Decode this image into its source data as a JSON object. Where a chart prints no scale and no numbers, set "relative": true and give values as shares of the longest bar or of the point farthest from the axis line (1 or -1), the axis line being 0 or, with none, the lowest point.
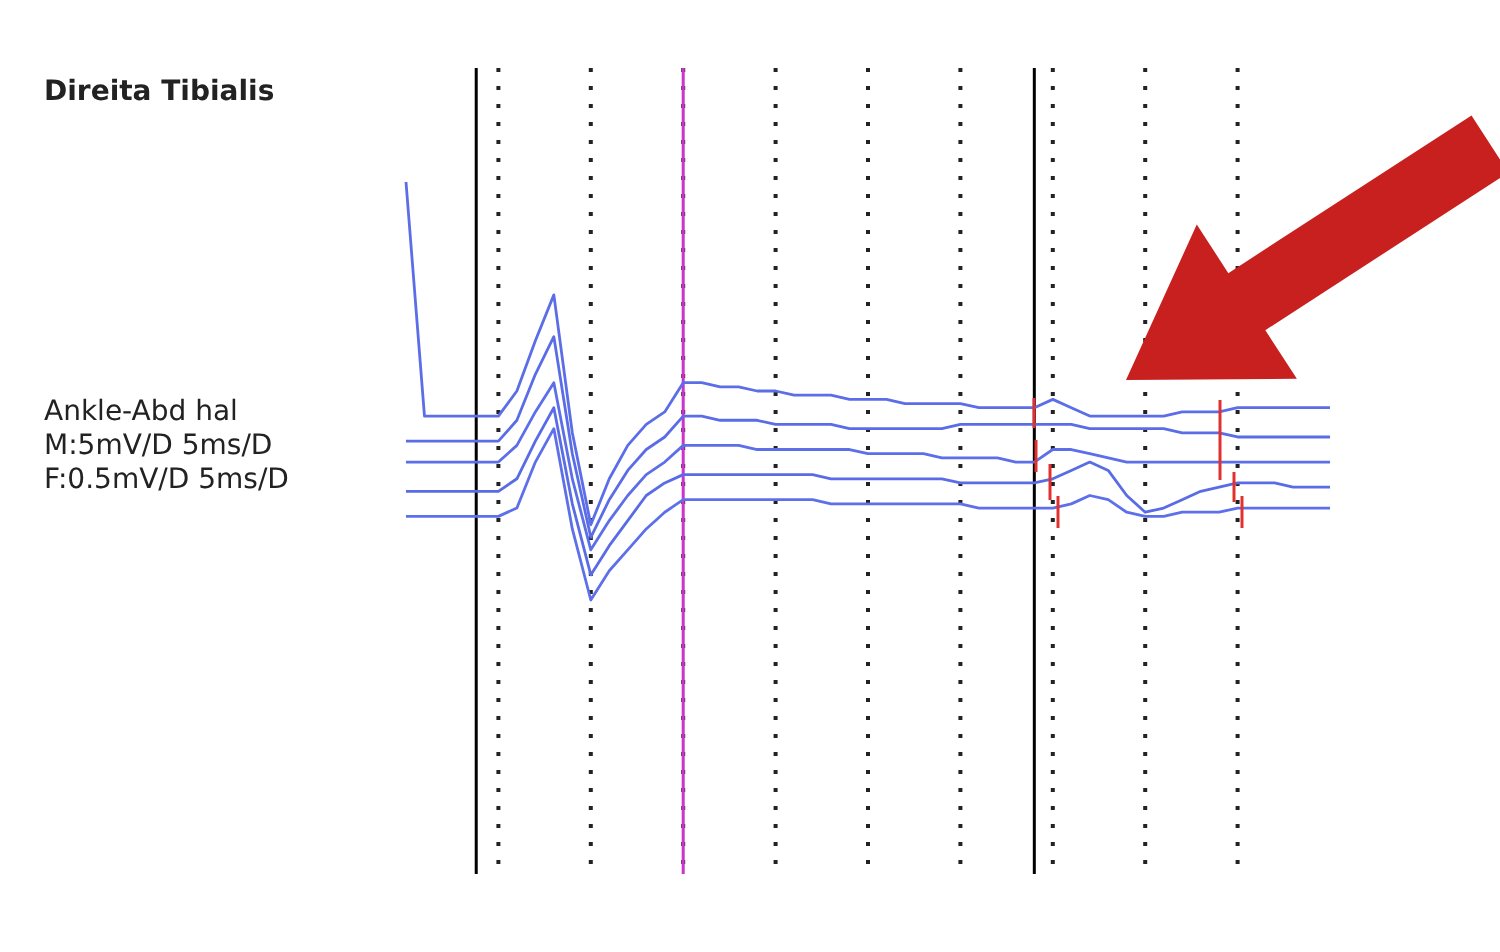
{
  "chart_data": {
    "type": "line",
    "title": "Direita Tibialis",
    "relative": true,
    "grid": "x",
    "annotations": [
      "Ankle-Abd hal",
      "M:5mV/D 5ms/D",
      "F:0.5mV/D 5ms/D"
    ],
    "categories": [
      null,
      null,
      null,
      null,
      null,
      null,
      null,
      null,
      null,
      null,
      null,
      null,
      null,
      null,
      null,
      null,
      null,
      null,
      null,
      null,
      null,
      null,
      null,
      null,
      null,
      null,
      null,
      null,
      null,
      null,
      null,
      null,
      null,
      null,
      null,
      null,
      null,
      null,
      null,
      null,
      null,
      null,
      null,
      null,
      null,
      null,
      null,
      null,
      null,
      null,
      null
    ],
    "series": [
      {
        "color": "#5b6ee8",
        "values": [
          1.0,
          0.44,
          0.44,
          0.44,
          0.44,
          0.44,
          0.5,
          0.62,
          0.73,
          0.4,
          0.18,
          0.29,
          0.37,
          0.42,
          0.45,
          0.52,
          0.52,
          0.51,
          0.51,
          0.5,
          0.5,
          0.49,
          0.49,
          0.49,
          0.48,
          0.48,
          0.48,
          0.47,
          0.47,
          0.47,
          0.47,
          0.46,
          0.46,
          0.46,
          0.46,
          0.48,
          0.46,
          0.44,
          0.44,
          0.44,
          0.44,
          0.44,
          0.45,
          0.45,
          0.45,
          0.46,
          0.46,
          0.46,
          0.46,
          0.46,
          0.46
        ]
      },
      {
        "color": "#5a6de7",
        "values": [
          0.38,
          0.38,
          0.38,
          0.38,
          0.38,
          0.38,
          0.43,
          0.54,
          0.63,
          0.35,
          0.15,
          0.24,
          0.31,
          0.36,
          0.39,
          0.44,
          0.44,
          0.43,
          0.43,
          0.43,
          0.42,
          0.42,
          0.42,
          0.42,
          0.41,
          0.41,
          0.41,
          0.41,
          0.41,
          0.41,
          0.42,
          0.42,
          0.42,
          0.42,
          0.42,
          0.42,
          0.42,
          0.41,
          0.41,
          0.41,
          0.41,
          0.41,
          0.4,
          0.4,
          0.4,
          0.39,
          0.39,
          0.39,
          0.39,
          0.39,
          0.39
        ]
      },
      {
        "color": "#5c6fe9",
        "values": [
          0.33,
          0.33,
          0.33,
          0.33,
          0.33,
          0.33,
          0.37,
          0.45,
          0.52,
          0.29,
          0.12,
          0.19,
          0.25,
          0.3,
          0.33,
          0.37,
          0.37,
          0.37,
          0.37,
          0.36,
          0.36,
          0.36,
          0.36,
          0.36,
          0.36,
          0.35,
          0.35,
          0.35,
          0.35,
          0.34,
          0.34,
          0.34,
          0.34,
          0.33,
          0.33,
          0.36,
          0.36,
          0.35,
          0.34,
          0.33,
          0.33,
          0.33,
          0.33,
          0.33,
          0.33,
          0.33,
          0.33,
          0.33,
          0.33,
          0.33,
          0.33
        ]
      },
      {
        "color": "#596ce6",
        "values": [
          0.26,
          0.26,
          0.26,
          0.26,
          0.26,
          0.26,
          0.29,
          0.38,
          0.46,
          0.23,
          0.06,
          0.13,
          0.19,
          0.25,
          0.28,
          0.3,
          0.3,
          0.3,
          0.3,
          0.3,
          0.3,
          0.3,
          0.3,
          0.29,
          0.29,
          0.29,
          0.29,
          0.29,
          0.29,
          0.29,
          0.28,
          0.28,
          0.28,
          0.28,
          0.28,
          0.29,
          0.31,
          0.33,
          0.31,
          0.25,
          0.21,
          0.22,
          0.24,
          0.26,
          0.27,
          0.28,
          0.28,
          0.28,
          0.27,
          0.27,
          0.27
        ]
      },
      {
        "color": "#5d70ea",
        "values": [
          0.2,
          0.2,
          0.2,
          0.2,
          0.2,
          0.2,
          0.22,
          0.33,
          0.41,
          0.17,
          0.0,
          0.07,
          0.12,
          0.17,
          0.21,
          0.24,
          0.24,
          0.24,
          0.24,
          0.24,
          0.24,
          0.24,
          0.24,
          0.23,
          0.23,
          0.23,
          0.23,
          0.23,
          0.23,
          0.23,
          0.23,
          0.22,
          0.22,
          0.22,
          0.22,
          0.22,
          0.23,
          0.25,
          0.24,
          0.21,
          0.2,
          0.2,
          0.21,
          0.21,
          0.21,
          0.22,
          0.22,
          0.22,
          0.22,
          0.22,
          0.22
        ]
      }
    ]
  }
}
